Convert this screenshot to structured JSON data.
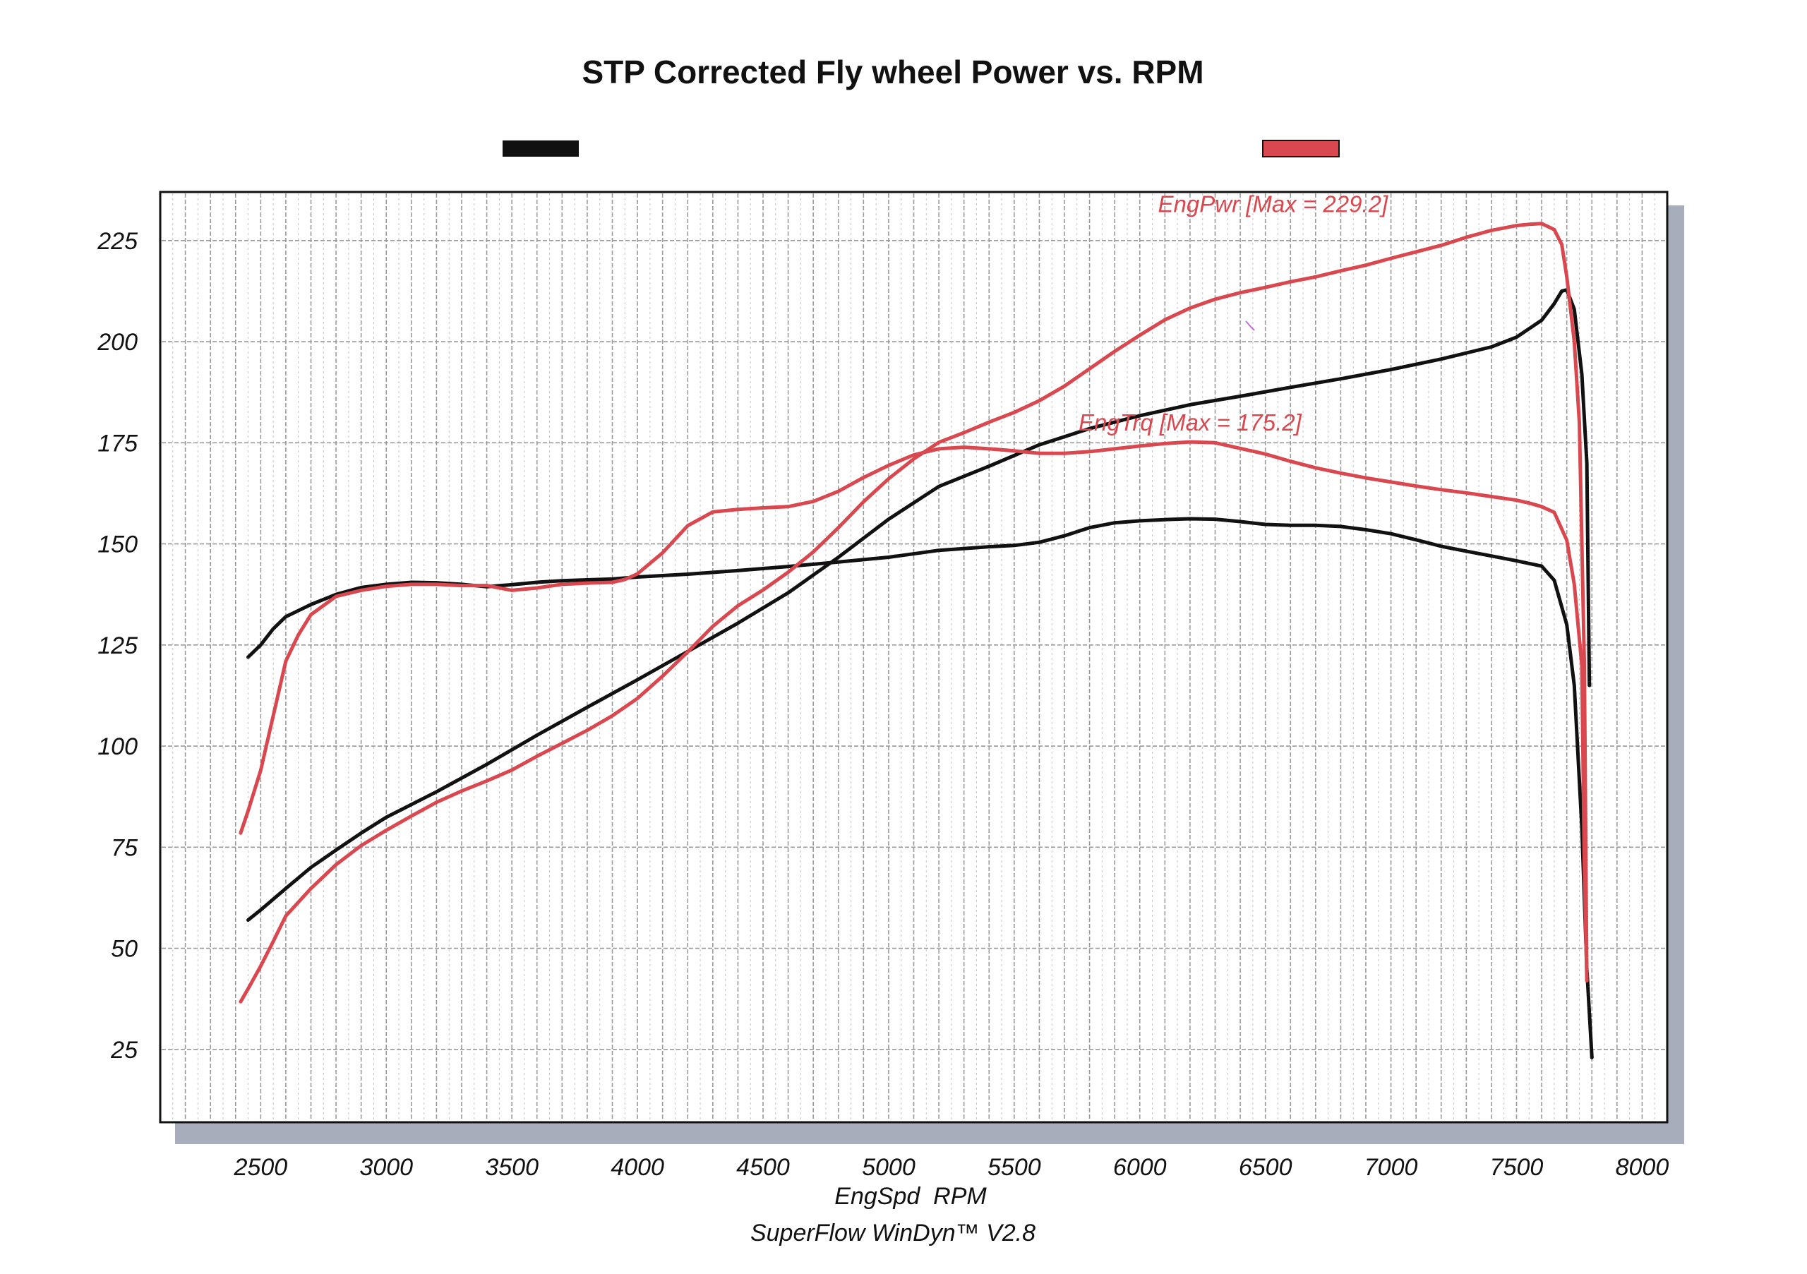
{
  "chart_data": {
    "type": "line",
    "title": "STP Corrected Fly wheel Power vs. RPM",
    "xlabel": "EngSpd  RPM",
    "footer": "SuperFlow WinDyn™ V2.8",
    "xlim": [
      2100,
      8100
    ],
    "ylim": [
      7,
      237
    ],
    "x_ticks": [
      2500,
      3000,
      3500,
      4000,
      4500,
      5000,
      5500,
      6000,
      6500,
      7000,
      7500,
      8000
    ],
    "y_ticks": [
      25,
      50,
      75,
      100,
      125,
      150,
      175,
      200,
      225
    ],
    "x_tick_labels": [
      "2500",
      "3000",
      "3500",
      "4000",
      "4500",
      "5000",
      "5500",
      "6000",
      "6500",
      "7000",
      "7500",
      "8000"
    ],
    "y_tick_labels": [
      "25",
      "50",
      "75",
      "100",
      "125",
      "150",
      "175",
      "200",
      "225"
    ],
    "grid": true,
    "colors": {
      "black_run": "#111111",
      "red_run": "#d9474f",
      "annotation": "#d9474f"
    },
    "annotations": [
      {
        "text": "EngPwr [Max = 229.2]",
        "x": 6530,
        "y": 232
      },
      {
        "text": "EngTrq [Max = 175.2]",
        "x": 6200,
        "y": 178
      }
    ],
    "series": [
      {
        "color": "#111111",
        "x": [
          2450,
          2500,
          2550,
          2600,
          2700,
          2800,
          2900,
          3000,
          3100,
          3200,
          3300,
          3400,
          3500,
          3600,
          3700,
          3800,
          3900,
          4000,
          4200,
          4400,
          4600,
          4800,
          5000,
          5200,
          5400,
          5500,
          5600,
          5700,
          5800,
          5900,
          6000,
          6100,
          6200,
          6300,
          6400,
          6500,
          6600,
          6700,
          6800,
          6900,
          7000,
          7100,
          7200,
          7300,
          7400,
          7500,
          7600,
          7650,
          7700,
          7730,
          7760,
          7780,
          7800
        ],
        "y": [
          122,
          125,
          129,
          132,
          135,
          137.5,
          139.2,
          140,
          140.5,
          140.4,
          140,
          139.4,
          139.9,
          140.5,
          140.9,
          141.1,
          141.3,
          141.8,
          142.5,
          143.4,
          144.4,
          145.5,
          146.7,
          148.4,
          149.3,
          149.6,
          150.4,
          152,
          154,
          155.2,
          155.7,
          156,
          156.2,
          156.1,
          155.5,
          154.8,
          154.6,
          154.6,
          154.3,
          153.5,
          152.5,
          151,
          149.4,
          148.2,
          147,
          145.8,
          144.5,
          141,
          130,
          115,
          80,
          45,
          23
        ]
      },
      {
        "color": "#111111",
        "x": [
          2450,
          2500,
          2600,
          2700,
          2800,
          2900,
          3000,
          3200,
          3400,
          3600,
          3800,
          4000,
          4200,
          4400,
          4600,
          4800,
          5000,
          5200,
          5400,
          5600,
          5800,
          6000,
          6200,
          6400,
          6600,
          6800,
          7000,
          7200,
          7400,
          7500,
          7600,
          7650,
          7680,
          7700,
          7730,
          7760,
          7780,
          7790
        ],
        "y": [
          57,
          59.5,
          64.8,
          70,
          74.3,
          78.5,
          82.4,
          88.7,
          95.5,
          102.7,
          109.6,
          116.4,
          123.4,
          130.4,
          137.9,
          146.7,
          156.1,
          164.2,
          169.2,
          174.5,
          178.5,
          181.7,
          184.4,
          186.5,
          188.7,
          190.8,
          193.1,
          195.7,
          198.7,
          201.1,
          205.3,
          209.4,
          212.5,
          212.8,
          208,
          192,
          170,
          115
        ]
      },
      {
        "color": "#d9474f",
        "x": [
          2420,
          2450,
          2500,
          2550,
          2600,
          2650,
          2700,
          2800,
          2900,
          3000,
          3100,
          3200,
          3300,
          3400,
          3500,
          3600,
          3700,
          3800,
          3900,
          3950,
          4000,
          4100,
          4200,
          4300,
          4400,
          4500,
          4600,
          4700,
          4800,
          4900,
          5000,
          5100,
          5200,
          5300,
          5400,
          5500,
          5600,
          5700,
          5800,
          5900,
          6000,
          6100,
          6200,
          6300,
          6400,
          6500,
          6600,
          6700,
          6800,
          6900,
          7000,
          7100,
          7200,
          7300,
          7400,
          7500,
          7550,
          7600,
          7650,
          7700,
          7730,
          7760,
          7770,
          7780
        ],
        "y": [
          78.5,
          84,
          94,
          107.5,
          121,
          127.5,
          132.5,
          137,
          138.5,
          139.5,
          140,
          140,
          139.7,
          139.7,
          138.5,
          139.1,
          140,
          140.3,
          140.5,
          141.2,
          142.6,
          147.8,
          154.5,
          157.9,
          158.5,
          158.9,
          159.2,
          160.5,
          163,
          166.4,
          169.4,
          172,
          173.5,
          173.9,
          173.5,
          173,
          172.4,
          172.4,
          172.8,
          173.5,
          174.2,
          174.8,
          175.2,
          175,
          173.6,
          172.2,
          170.4,
          168.8,
          167.5,
          166.3,
          165.3,
          164.3,
          163.4,
          162.6,
          161.7,
          160.8,
          160.1,
          159.2,
          157.8,
          150.9,
          140,
          120,
          70,
          42
        ]
      },
      {
        "color": "#d9474f",
        "x": [
          2420,
          2450,
          2500,
          2550,
          2600,
          2700,
          2800,
          2900,
          3000,
          3100,
          3200,
          3300,
          3400,
          3500,
          3600,
          3700,
          3800,
          3900,
          4000,
          4100,
          4200,
          4300,
          4400,
          4500,
          4600,
          4700,
          4800,
          4900,
          5000,
          5100,
          5200,
          5300,
          5400,
          5500,
          5600,
          5700,
          5800,
          5900,
          6000,
          6100,
          6200,
          6300,
          6400,
          6500,
          6600,
          6700,
          6800,
          6900,
          7000,
          7100,
          7200,
          7300,
          7400,
          7500,
          7550,
          7600,
          7650,
          7680,
          7700,
          7730,
          7750,
          7770,
          7780
        ],
        "y": [
          36.8,
          40,
          45.6,
          51.7,
          58,
          64.8,
          70.7,
          75.4,
          79.2,
          82.7,
          86.1,
          88.9,
          91.4,
          94.1,
          97.5,
          100.7,
          103.9,
          107.5,
          111.8,
          117.3,
          123.3,
          129.6,
          134.7,
          138.6,
          143,
          148,
          154,
          160.4,
          166.1,
          171,
          175.1,
          177.5,
          180.1,
          182.5,
          185.4,
          189,
          193.3,
          197.6,
          201.6,
          205.4,
          208.3,
          210.5,
          212.1,
          213.4,
          214.8,
          216,
          217.5,
          218.9,
          220.6,
          222.2,
          223.8,
          225.8,
          227.5,
          228.7,
          229,
          229.2,
          227.7,
          224,
          216,
          200,
          180,
          120,
          42
        ]
      }
    ]
  }
}
